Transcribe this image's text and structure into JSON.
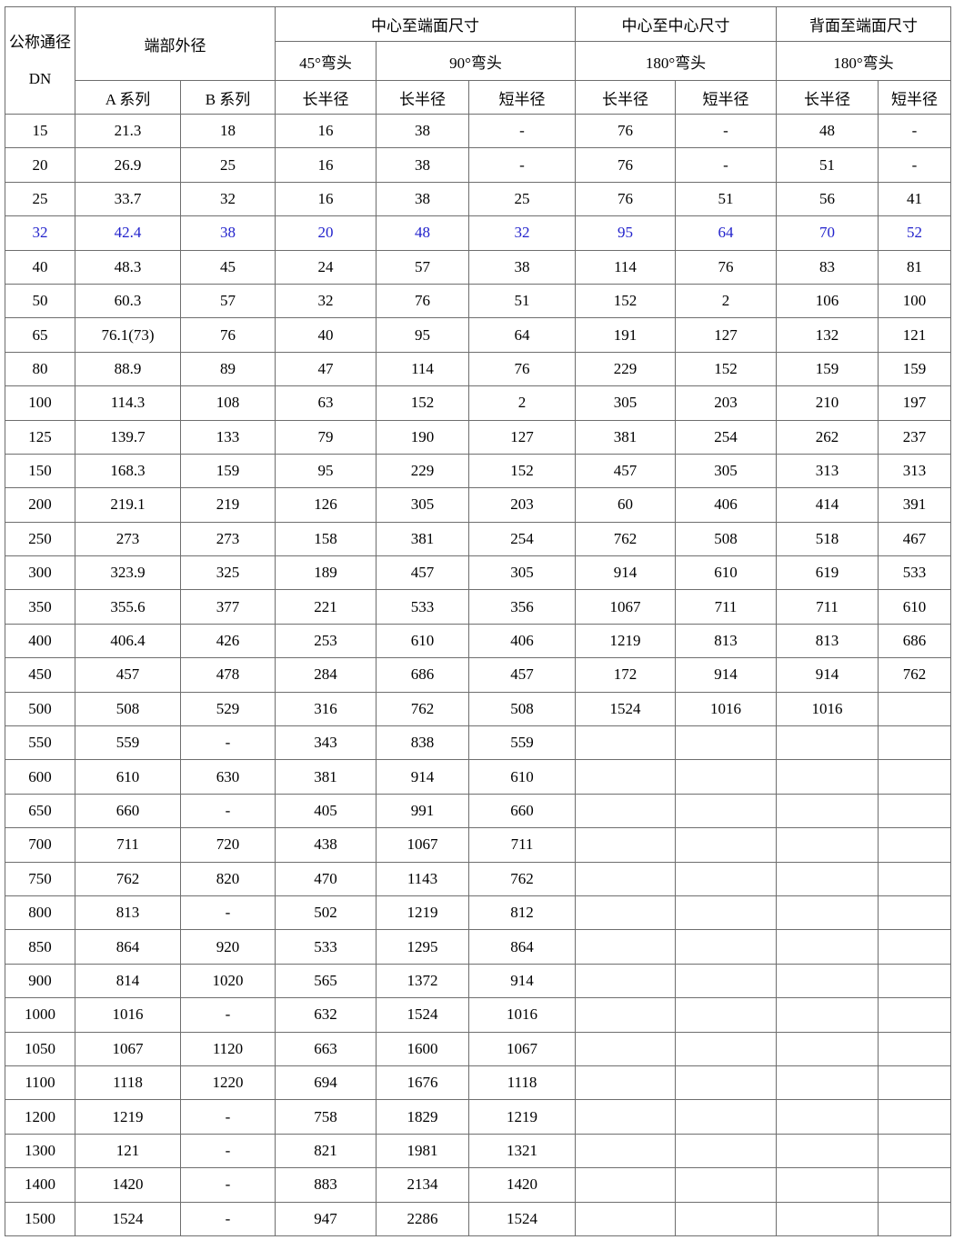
{
  "table": {
    "headers": {
      "nominal_diameter": "公称通径",
      "dn": "DN",
      "end_outer_diameter": "端部外径",
      "series_a": "A 系列",
      "series_b": "B 系列",
      "center_to_end": "中心至端面尺寸",
      "elbow_45": "45°弯头",
      "elbow_90": "90°弯头",
      "center_to_center": "中心至中心尺寸",
      "elbow_180": "180°弯头",
      "back_to_end": "背面至端面尺寸",
      "long_radius": "长半径",
      "short_radius": "短半径"
    },
    "highlighted_dn": "32",
    "highlight_color": "#2222cc",
    "rows": [
      [
        "15",
        "21.3",
        "18",
        "16",
        "38",
        "-",
        "76",
        "-",
        "48",
        "-"
      ],
      [
        "20",
        "26.9",
        "25",
        "16",
        "38",
        "-",
        "76",
        "-",
        "51",
        "-"
      ],
      [
        "25",
        "33.7",
        "32",
        "16",
        "38",
        "25",
        "76",
        "51",
        "56",
        "41"
      ],
      [
        "32",
        "42.4",
        "38",
        "20",
        "48",
        "32",
        "95",
        "64",
        "70",
        "52"
      ],
      [
        "40",
        "48.3",
        "45",
        "24",
        "57",
        "38",
        "114",
        "76",
        "83",
        "81"
      ],
      [
        "50",
        "60.3",
        "57",
        "32",
        "76",
        "51",
        "152",
        "2",
        "106",
        "100"
      ],
      [
        "65",
        "76.1(73)",
        "76",
        "40",
        "95",
        "64",
        "191",
        "127",
        "132",
        "121"
      ],
      [
        "80",
        "88.9",
        "89",
        "47",
        "114",
        "76",
        "229",
        "152",
        "159",
        "159"
      ],
      [
        "100",
        "114.3",
        "108",
        "63",
        "152",
        "2",
        "305",
        "203",
        "210",
        "197"
      ],
      [
        "125",
        "139.7",
        "133",
        "79",
        "190",
        "127",
        "381",
        "254",
        "262",
        "237"
      ],
      [
        "150",
        "168.3",
        "159",
        "95",
        "229",
        "152",
        "457",
        "305",
        "313",
        "313"
      ],
      [
        "200",
        "219.1",
        "219",
        "126",
        "305",
        "203",
        "60",
        "406",
        "414",
        "391"
      ],
      [
        "250",
        "273",
        "273",
        "158",
        "381",
        "254",
        "762",
        "508",
        "518",
        "467"
      ],
      [
        "300",
        "323.9",
        "325",
        "189",
        "457",
        "305",
        "914",
        "610",
        "619",
        "533"
      ],
      [
        "350",
        "355.6",
        "377",
        "221",
        "533",
        "356",
        "1067",
        "711",
        "711",
        "610"
      ],
      [
        "400",
        "406.4",
        "426",
        "253",
        "610",
        "406",
        "1219",
        "813",
        "813",
        "686"
      ],
      [
        "450",
        "457",
        "478",
        "284",
        "686",
        "457",
        "172",
        "914",
        "914",
        "762"
      ],
      [
        "500",
        "508",
        "529",
        "316",
        "762",
        "508",
        "1524",
        "1016",
        "1016",
        ""
      ],
      [
        "550",
        "559",
        "-",
        "343",
        "838",
        "559",
        "",
        "",
        "",
        ""
      ],
      [
        "600",
        "610",
        "630",
        "381",
        "914",
        "610",
        "",
        "",
        "",
        ""
      ],
      [
        "650",
        "660",
        "-",
        "405",
        "991",
        "660",
        "",
        "",
        "",
        ""
      ],
      [
        "700",
        "711",
        "720",
        "438",
        "1067",
        "711",
        "",
        "",
        "",
        ""
      ],
      [
        "750",
        "762",
        "820",
        "470",
        "1143",
        "762",
        "",
        "",
        "",
        ""
      ],
      [
        "800",
        "813",
        "-",
        "502",
        "1219",
        "812",
        "",
        "",
        "",
        ""
      ],
      [
        "850",
        "864",
        "920",
        "533",
        "1295",
        "864",
        "",
        "",
        "",
        ""
      ],
      [
        "900",
        "814",
        "1020",
        "565",
        "1372",
        "914",
        "",
        "",
        "",
        ""
      ],
      [
        "1000",
        "1016",
        "-",
        "632",
        "1524",
        "1016",
        "",
        "",
        "",
        ""
      ],
      [
        "1050",
        "1067",
        "1120",
        "663",
        "1600",
        "1067",
        "",
        "",
        "",
        ""
      ],
      [
        "1100",
        "1118",
        "1220",
        "694",
        "1676",
        "1118",
        "",
        "",
        "",
        ""
      ],
      [
        "1200",
        "1219",
        "-",
        "758",
        "1829",
        "1219",
        "",
        "",
        "",
        ""
      ],
      [
        "1300",
        "121",
        "-",
        "821",
        "1981",
        "1321",
        "",
        "",
        "",
        ""
      ],
      [
        "1400",
        "1420",
        "-",
        "883",
        "2134",
        "1420",
        "",
        "",
        "",
        ""
      ],
      [
        "1500",
        "1524",
        "-",
        "947",
        "2286",
        "1524",
        "",
        "",
        "",
        ""
      ]
    ]
  }
}
